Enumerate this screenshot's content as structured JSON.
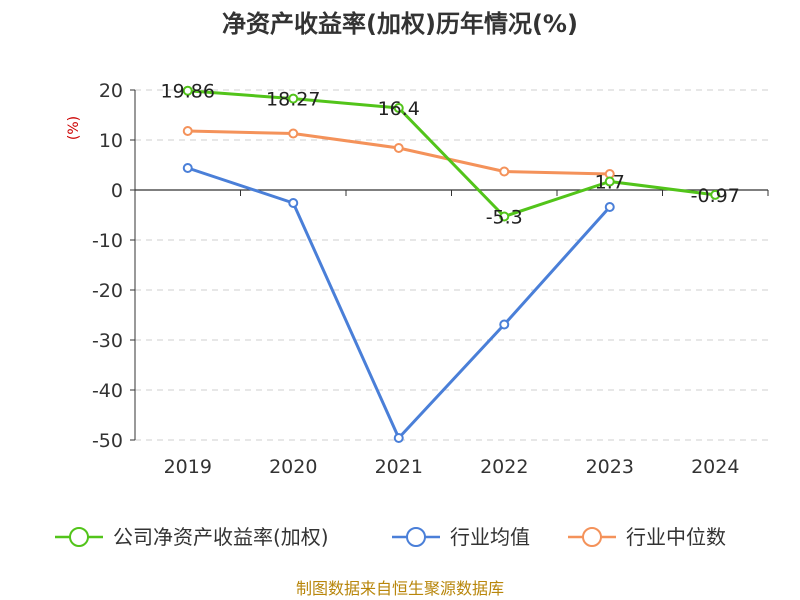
{
  "chart_data": {
    "type": "line",
    "title": "净资产收益率(加权)历年情况(%)",
    "ylabel": "(%)",
    "xlabel": "",
    "categories": [
      "2019",
      "2020",
      "2021",
      "2022",
      "2023",
      "2024"
    ],
    "ylim": [
      -50,
      20
    ],
    "yticks": [
      20,
      10,
      0,
      -10,
      -20,
      -30,
      -40,
      -50
    ],
    "grid": true,
    "legend_position": "bottom",
    "series": [
      {
        "name": "公司净资产收益率(加权)",
        "color": "#52c41a",
        "values": [
          19.86,
          18.27,
          16.4,
          -5.3,
          1.7,
          -0.97
        ],
        "labels": [
          "19.86",
          "18.27",
          "16.4",
          "-5.3",
          "1.7",
          "-0.97"
        ]
      },
      {
        "name": "行业均值",
        "color": "#4a7fd8",
        "values": [
          4.4,
          -2.6,
          -49.6,
          -26.9,
          -3.4,
          null
        ]
      },
      {
        "name": "行业中位数",
        "color": "#f4925a",
        "values": [
          11.8,
          11.3,
          8.4,
          3.7,
          3.2,
          null
        ]
      }
    ],
    "source": "制图数据来自恒生聚源数据库"
  }
}
